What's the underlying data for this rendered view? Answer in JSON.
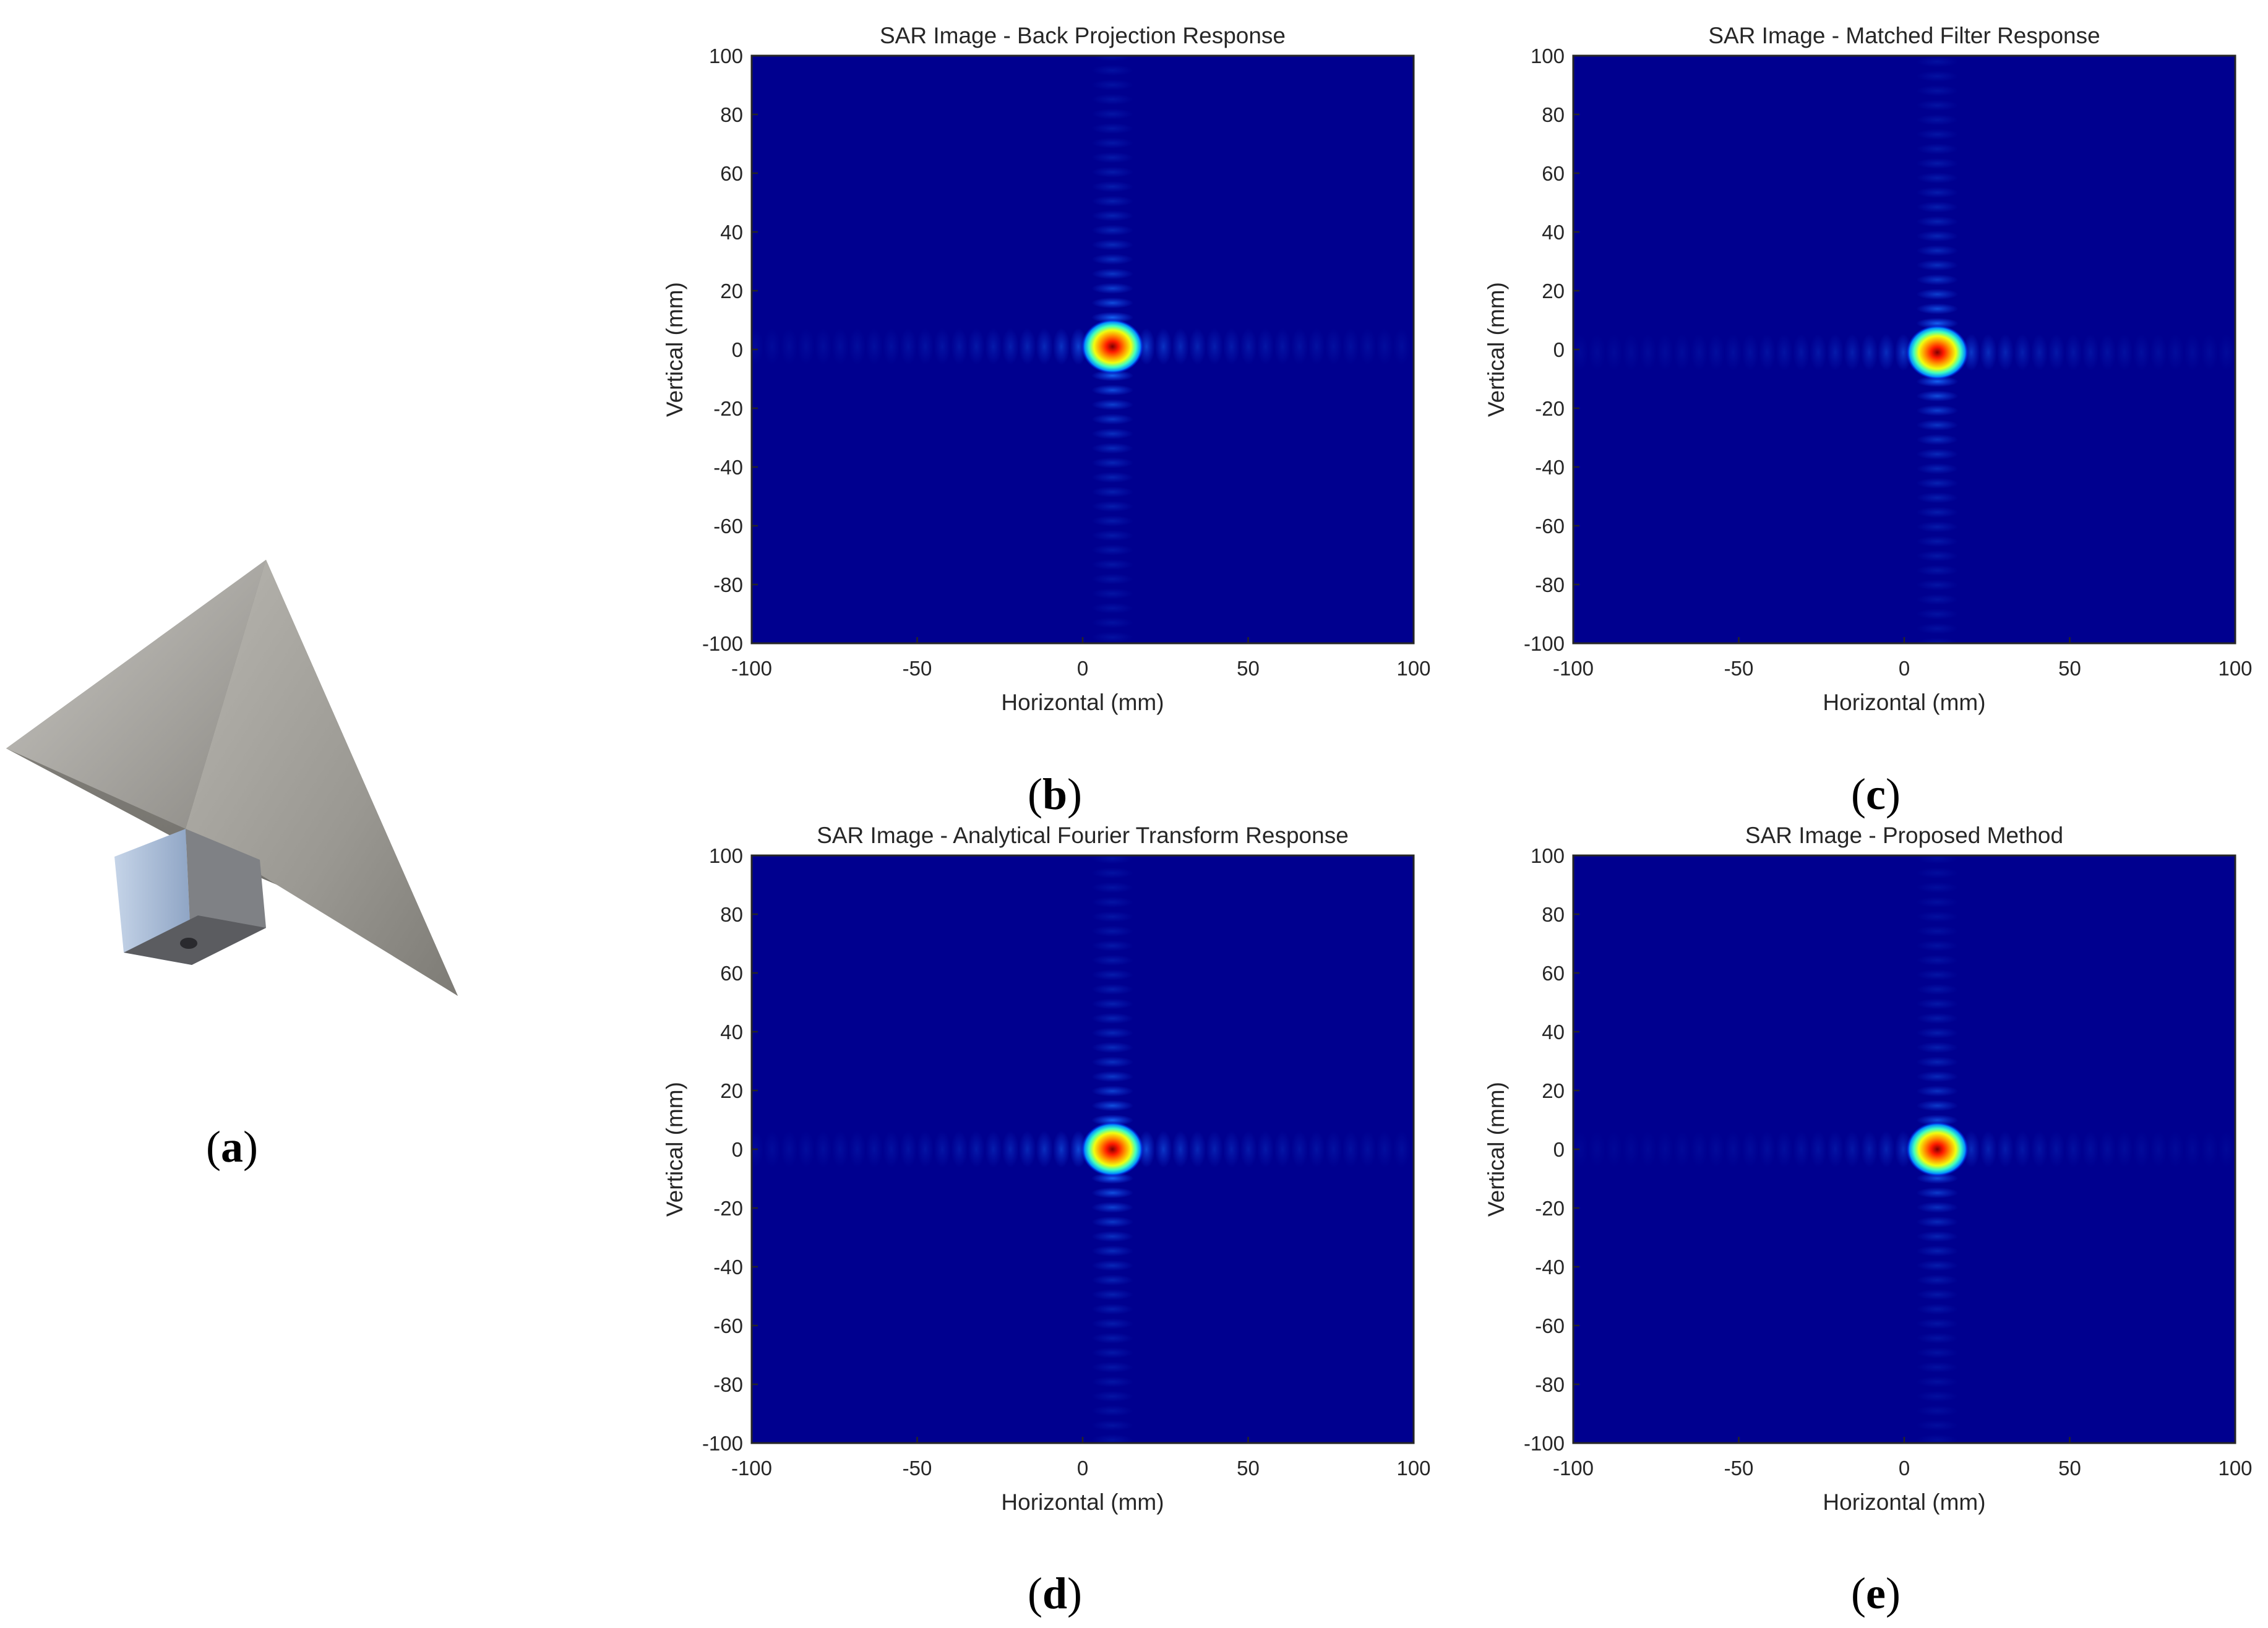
{
  "figure": {
    "captions": [
      {
        "letter": "a"
      },
      {
        "letter": "b"
      },
      {
        "letter": "c"
      },
      {
        "letter": "d"
      },
      {
        "letter": "e"
      }
    ],
    "photo_icon": "corner-reflector-photo"
  },
  "colors": {
    "background": "#00008f",
    "colormap": "jet"
  },
  "chart_data": [
    {
      "type": "heatmap",
      "title": "SAR Image - Back Projection Response",
      "xlabel": "Horizontal (mm)",
      "ylabel": "Vertical (mm)",
      "xlim": [
        -100,
        100
      ],
      "ylim": [
        -100,
        100
      ],
      "xticks": [
        "-100",
        "-50",
        "0",
        "50",
        "100"
      ],
      "yticks": [
        "100",
        "80",
        "60",
        "40",
        "20",
        "0",
        "-20",
        "-40",
        "-60",
        "-80",
        "-100"
      ],
      "peak": {
        "x": 9,
        "y": 1
      },
      "horizontal_sidelobe_strength": 0.18,
      "vertical_sidelobe_strength": 0.26,
      "grid": false
    },
    {
      "type": "heatmap",
      "title": "SAR Image - Matched Filter Response",
      "xlabel": "Horizontal (mm)",
      "ylabel": "Vertical (mm)",
      "xlim": [
        -100,
        100
      ],
      "ylim": [
        -100,
        100
      ],
      "xticks": [
        "-100",
        "-50",
        "0",
        "50",
        "100"
      ],
      "yticks": [
        "100",
        "80",
        "60",
        "40",
        "20",
        "0",
        "-20",
        "-40",
        "-60",
        "-80",
        "-100"
      ],
      "peak": {
        "x": 10,
        "y": -1
      },
      "horizontal_sidelobe_strength": 0.16,
      "vertical_sidelobe_strength": 0.26,
      "grid": false
    },
    {
      "type": "heatmap",
      "title": "SAR Image - Analytical Fourier Transform Response",
      "xlabel": "Horizontal (mm)",
      "ylabel": "Vertical (mm)",
      "xlim": [
        -100,
        100
      ],
      "ylim": [
        -100,
        100
      ],
      "xticks": [
        "-100",
        "-50",
        "0",
        "50",
        "100"
      ],
      "yticks": [
        "100",
        "80",
        "60",
        "40",
        "20",
        "0",
        "-20",
        "-40",
        "-60",
        "-80",
        "-100"
      ],
      "peak": {
        "x": 9,
        "y": 0
      },
      "horizontal_sidelobe_strength": 0.2,
      "vertical_sidelobe_strength": 0.27,
      "grid": false
    },
    {
      "type": "heatmap",
      "title": "SAR Image - Proposed Method",
      "xlabel": "Horizontal (mm)",
      "ylabel": "Vertical (mm)",
      "xlim": [
        -100,
        100
      ],
      "ylim": [
        -100,
        100
      ],
      "xticks": [
        "-100",
        "-50",
        "0",
        "50",
        "100"
      ],
      "yticks": [
        "100",
        "80",
        "60",
        "40",
        "20",
        "0",
        "-20",
        "-40",
        "-60",
        "-80",
        "-100"
      ],
      "peak": {
        "x": 10,
        "y": 0
      },
      "horizontal_sidelobe_strength": 0.12,
      "vertical_sidelobe_strength": 0.2,
      "grid": false
    }
  ]
}
